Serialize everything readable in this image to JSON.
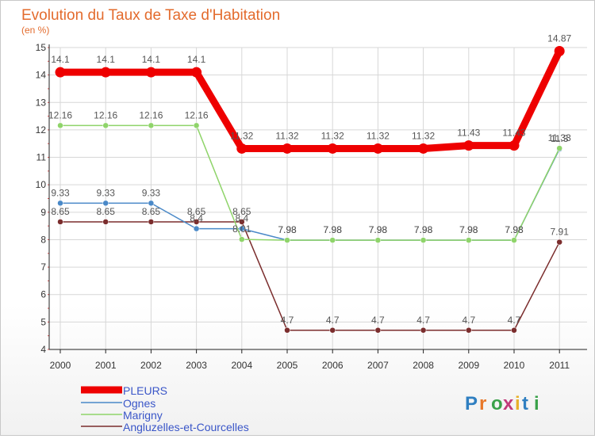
{
  "chart_data": {
    "type": "line",
    "title": "Evolution du Taux de Taxe d'Habitation",
    "subtitle": "(en %)",
    "xlabel": "",
    "ylabel": "",
    "x": [
      "2000",
      "2001",
      "2002",
      "2003",
      "2004",
      "2005",
      "2006",
      "2007",
      "2008",
      "2009",
      "2010",
      "2011"
    ],
    "ylim": [
      4,
      15
    ],
    "yticks": [
      "4",
      "5",
      "6",
      "7",
      "8",
      "9",
      "10",
      "11",
      "12",
      "13",
      "14",
      "15"
    ],
    "grid": true,
    "legend_position": "bottom-left",
    "series": [
      {
        "name": "PLEURS",
        "color": "#ee0000",
        "values": [
          14.1,
          14.1,
          14.1,
          14.1,
          11.32,
          11.32,
          11.32,
          11.32,
          11.32,
          11.43,
          11.43,
          14.87
        ],
        "labels": [
          "14.1",
          "14.1",
          "14.1",
          "14.1",
          "11.32",
          "11.32",
          "11.32",
          "11.32",
          "11.32",
          "11.43",
          "11.43",
          "14.87"
        ]
      },
      {
        "name": "Ognes",
        "color": "#4a89c8",
        "values": [
          9.33,
          9.33,
          9.33,
          8.4,
          8.4,
          7.98,
          7.98,
          7.98,
          7.98,
          7.98,
          7.98,
          11.3
        ],
        "labels": [
          "9.33",
          "9.33",
          "9.33",
          "8.4",
          "8.4",
          "7.98",
          "7.98",
          "7.98",
          "7.98",
          "7.98",
          "7.98",
          "11.3"
        ]
      },
      {
        "name": "Marigny",
        "color": "#8fd46a",
        "values": [
          12.16,
          12.16,
          12.16,
          12.16,
          8.01,
          7.98,
          7.98,
          7.98,
          7.98,
          7.98,
          7.98,
          11.33
        ],
        "labels": [
          "12.16",
          "12.16",
          "12.16",
          "12.16",
          "8.01",
          "7.98",
          "7.98",
          "7.98",
          "7.98",
          "7.98",
          "7.98",
          "11.33"
        ]
      },
      {
        "name": "Angluzelles-et-Courcelles",
        "color": "#7b2d2d",
        "values": [
          8.65,
          8.65,
          8.65,
          8.65,
          8.65,
          4.7,
          4.7,
          4.7,
          4.7,
          4.7,
          4.7,
          7.91
        ],
        "labels": [
          "8.65",
          "8.65",
          "8.65",
          "8.65",
          "8.65",
          "4.7",
          "4.7",
          "4.7",
          "4.7",
          "4.7",
          "4.7",
          "7.91"
        ]
      }
    ]
  },
  "watermark": {
    "text": "Proxiti"
  },
  "colors": {
    "title": "#e36b2d",
    "legend_text": "#3a56c8",
    "grid": "#d7d7d7",
    "axis": "#222222"
  }
}
